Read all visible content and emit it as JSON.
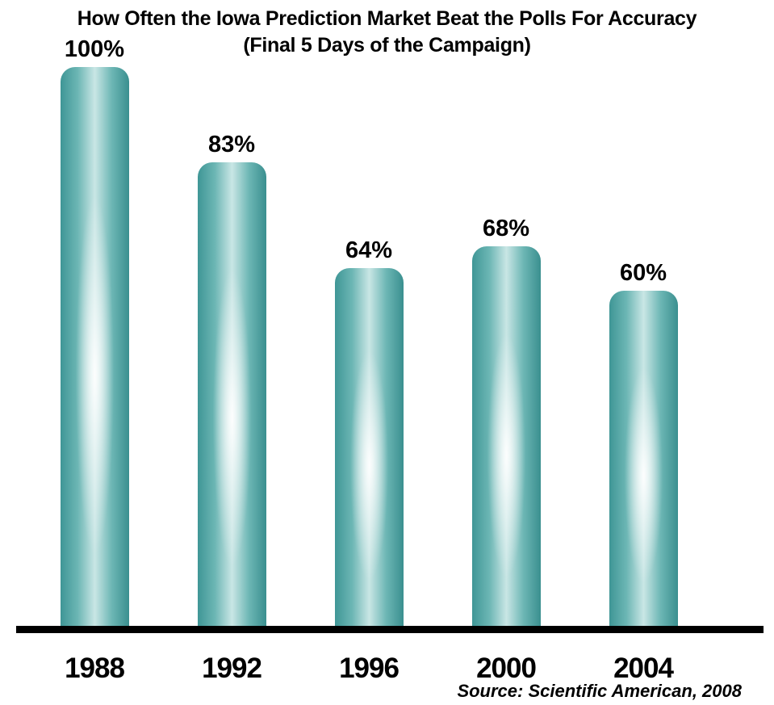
{
  "chart_data": {
    "type": "bar",
    "title": "How Often the Iowa Prediction Market Beat the Polls For Accuracy",
    "subtitle": "(Final 5 Days of the Campaign)",
    "categories": [
      "1988",
      "1992",
      "1996",
      "2000",
      "2004"
    ],
    "values": [
      100,
      83,
      64,
      68,
      60
    ],
    "value_labels": [
      "100%",
      "83%",
      "64%",
      "68%",
      "60%"
    ],
    "xlabel": "",
    "ylabel": "",
    "ylim": [
      0,
      100
    ],
    "grid": false,
    "legend": null,
    "bar_color": "#5aa9a7",
    "annotations": [
      "Source: Scientific American, 2008"
    ]
  },
  "header": {
    "title": "How Often the Iowa Prediction Market Beat the Polls For Accuracy",
    "subtitle": "(Final 5 Days of the Campaign)"
  },
  "footer": {
    "source": "Source: Scientific American, 2008"
  }
}
